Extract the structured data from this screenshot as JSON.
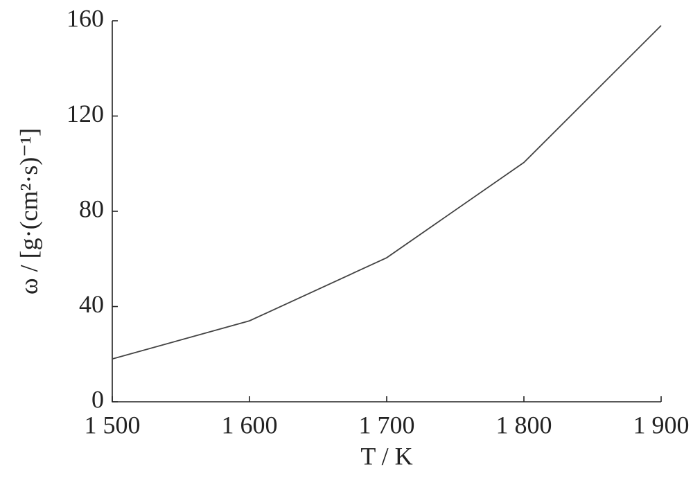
{
  "chart_data": {
    "type": "line",
    "x": [
      1500,
      1600,
      1700,
      1800,
      1900
    ],
    "series": [
      {
        "name": "ω",
        "color": "#444444",
        "values": [
          18,
          34,
          60.5,
          100.5,
          158
        ]
      }
    ],
    "xlim": [
      1500,
      1900
    ],
    "xticks": [
      {
        "value": 1500,
        "label": "1 500"
      },
      {
        "value": 1600,
        "label": "1 600"
      },
      {
        "value": 1700,
        "label": "1 700"
      },
      {
        "value": 1800,
        "label": "1 800"
      },
      {
        "value": 1900,
        "label": "1 900"
      }
    ],
    "ylim": [
      0,
      160
    ],
    "yticks": [
      0,
      40,
      80,
      120,
      160
    ],
    "xlabel": "T / K",
    "ylabel": "ω / [g·(cm²·s)⁻¹]",
    "grid": false
  }
}
